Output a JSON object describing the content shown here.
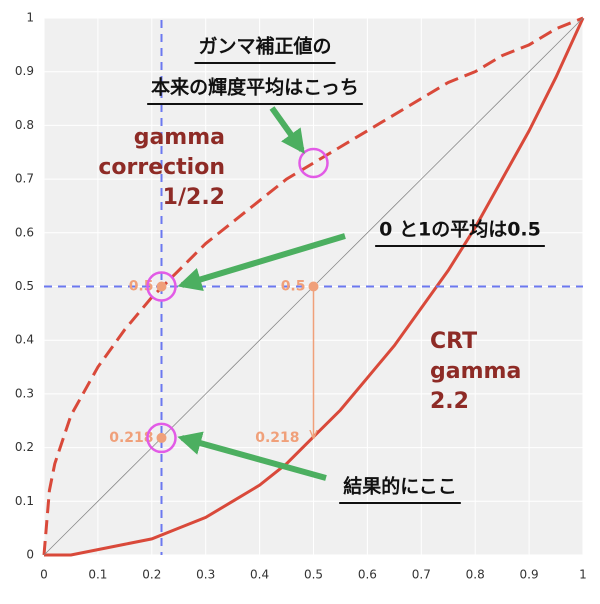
{
  "chart_data": {
    "type": "line",
    "x": [
      0,
      0.01,
      0.02,
      0.05,
      0.1,
      0.15,
      0.2,
      0.25,
      0.3,
      0.35,
      0.4,
      0.45,
      0.5,
      0.55,
      0.6,
      0.65,
      0.7,
      0.75,
      0.8,
      0.85,
      0.9,
      0.95,
      1
    ],
    "series": [
      {
        "color": "#d9493a",
        "dashed": true,
        "values": [
          0,
          0.12,
          0.17,
          0.26,
          0.35,
          0.42,
          0.48,
          0.53,
          0.58,
          0.62,
          0.66,
          0.7,
          0.73,
          0.76,
          0.79,
          0.82,
          0.85,
          0.88,
          0.9,
          0.93,
          0.95,
          0.98,
          1
        ]
      },
      {
        "color": "#d9493a",
        "dashed": false,
        "values": [
          0,
          0,
          0,
          0,
          0.01,
          0.02,
          0.03,
          0.05,
          0.07,
          0.1,
          0.13,
          0.17,
          0.22,
          0.27,
          0.33,
          0.39,
          0.46,
          0.53,
          0.61,
          0.7,
          0.79,
          0.89,
          1
        ]
      },
      {
        "color": "#888888",
        "dashed": false,
        "values": [
          0,
          0.01,
          0.02,
          0.05,
          0.1,
          0.15,
          0.2,
          0.25,
          0.3,
          0.35,
          0.4,
          0.45,
          0.5,
          0.55,
          0.6,
          0.65,
          0.7,
          0.75,
          0.8,
          0.85,
          0.9,
          0.95,
          1
        ]
      }
    ],
    "xlim": [
      0,
      1
    ],
    "ylim": [
      0,
      1
    ],
    "xticks": [
      0,
      0.1,
      0.2,
      0.3,
      0.4,
      0.5,
      0.6,
      0.7,
      0.8,
      0.9,
      1
    ],
    "yticks": [
      0,
      0.1,
      0.2,
      0.3,
      0.4,
      0.5,
      0.6,
      0.7,
      0.8,
      0.9,
      1
    ],
    "grid": true,
    "reference_lines": {
      "x": 0.218,
      "y": 0.5,
      "color": "#6b78f0"
    },
    "points": [
      {
        "x": 0.218,
        "y": 0.5
      },
      {
        "x": 0.5,
        "y": 0.5
      },
      {
        "x": 0.218,
        "y": 0.218
      }
    ],
    "arrow": {
      "x": 0.5,
      "from": 0.5,
      "to": 0.218
    },
    "highlights": [
      {
        "x": 0.5,
        "y": 0.73
      },
      {
        "x": 0.218,
        "y": 0.5
      },
      {
        "x": 0.218,
        "y": 0.218
      }
    ],
    "curve_labels": [
      {
        "lines": [
          "gamma",
          "correction",
          "1/2.2"
        ]
      },
      {
        "lines": [
          "CRT",
          "gamma",
          "2.2"
        ]
      }
    ],
    "annotations": [
      {
        "lines": [
          "ガンマ補正値の",
          "本来の輝度平均はこっち"
        ]
      },
      {
        "lines": [
          "0 と1の平均は0.5"
        ]
      },
      {
        "lines": [
          "結果的にここ"
        ]
      }
    ]
  }
}
